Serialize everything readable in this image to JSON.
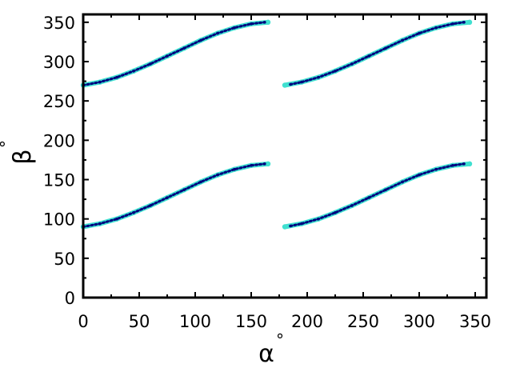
{
  "chart_data": {
    "type": "scatter",
    "title": "",
    "xlabel": "α",
    "xlabel_unit": "°",
    "ylabel": "β",
    "ylabel_unit": "°",
    "xlim": [
      0,
      360
    ],
    "ylim": [
      0,
      360
    ],
    "x_ticks": [
      0,
      50,
      100,
      150,
      200,
      250,
      300,
      350
    ],
    "y_ticks": [
      0,
      50,
      100,
      150,
      200,
      250,
      300,
      350
    ],
    "x_tick_labels": [
      "0",
      "50",
      "100",
      "150",
      "200",
      "250",
      "300",
      "350"
    ],
    "y_tick_labels": [
      "0",
      "50",
      "100",
      "150",
      "200",
      "250",
      "300",
      "350"
    ],
    "grid": false,
    "legend": "none",
    "series": [
      {
        "color": "#40e0d0",
        "marker": "dot-large",
        "segments": [
          {
            "x": [
              0,
              15,
              30,
              45,
              60,
              75,
              90,
              105,
              120,
              135,
              150,
              165
            ],
            "y": [
              90,
              94,
              100,
              108,
              117,
              127,
              137,
              147,
              156,
              163,
              168,
              170
            ]
          },
          {
            "x": [
              0,
              15,
              30,
              45,
              60,
              75,
              90,
              105,
              120,
              135,
              150,
              165
            ],
            "y": [
              270,
              274,
              280,
              288,
              297,
              307,
              317,
              327,
              336,
              343,
              348,
              350
            ]
          },
          {
            "x": [
              180,
              195,
              210,
              225,
              240,
              255,
              270,
              285,
              300,
              315,
              330,
              345
            ],
            "y": [
              90,
              94,
              100,
              108,
              117,
              127,
              137,
              147,
              156,
              163,
              168,
              170
            ]
          },
          {
            "x": [
              180,
              195,
              210,
              225,
              240,
              255,
              270,
              285,
              300,
              315,
              330,
              345
            ],
            "y": [
              270,
              274,
              280,
              288,
              297,
              307,
              317,
              327,
              336,
              343,
              348,
              350
            ]
          }
        ]
      },
      {
        "color": "#00007f",
        "marker": "dot-small",
        "segments": [
          {
            "x": [
              0,
              15,
              30,
              45,
              60,
              75,
              90,
              105,
              120,
              135,
              150,
              162
            ],
            "y": [
              90,
              94,
              100,
              108,
              117,
              127,
              137,
              147,
              156,
              163,
              168,
              170
            ]
          },
          {
            "x": [
              0,
              15,
              30,
              45,
              60,
              75,
              90,
              105,
              120,
              135,
              150,
              162
            ],
            "y": [
              270,
              274,
              280,
              288,
              297,
              307,
              317,
              327,
              336,
              343,
              348,
              350
            ]
          },
          {
            "x": [
              185,
              195,
              210,
              225,
              240,
              255,
              270,
              285,
              300,
              315,
              330,
              340
            ],
            "y": [
              91,
              94,
              100,
              108,
              117,
              127,
              137,
              147,
              156,
              163,
              168,
              170
            ]
          },
          {
            "x": [
              185,
              195,
              210,
              225,
              240,
              255,
              270,
              285,
              300,
              315,
              330,
              340
            ],
            "y": [
              271,
              274,
              280,
              288,
              297,
              307,
              317,
              327,
              336,
              343,
              348,
              350
            ]
          }
        ]
      }
    ]
  }
}
